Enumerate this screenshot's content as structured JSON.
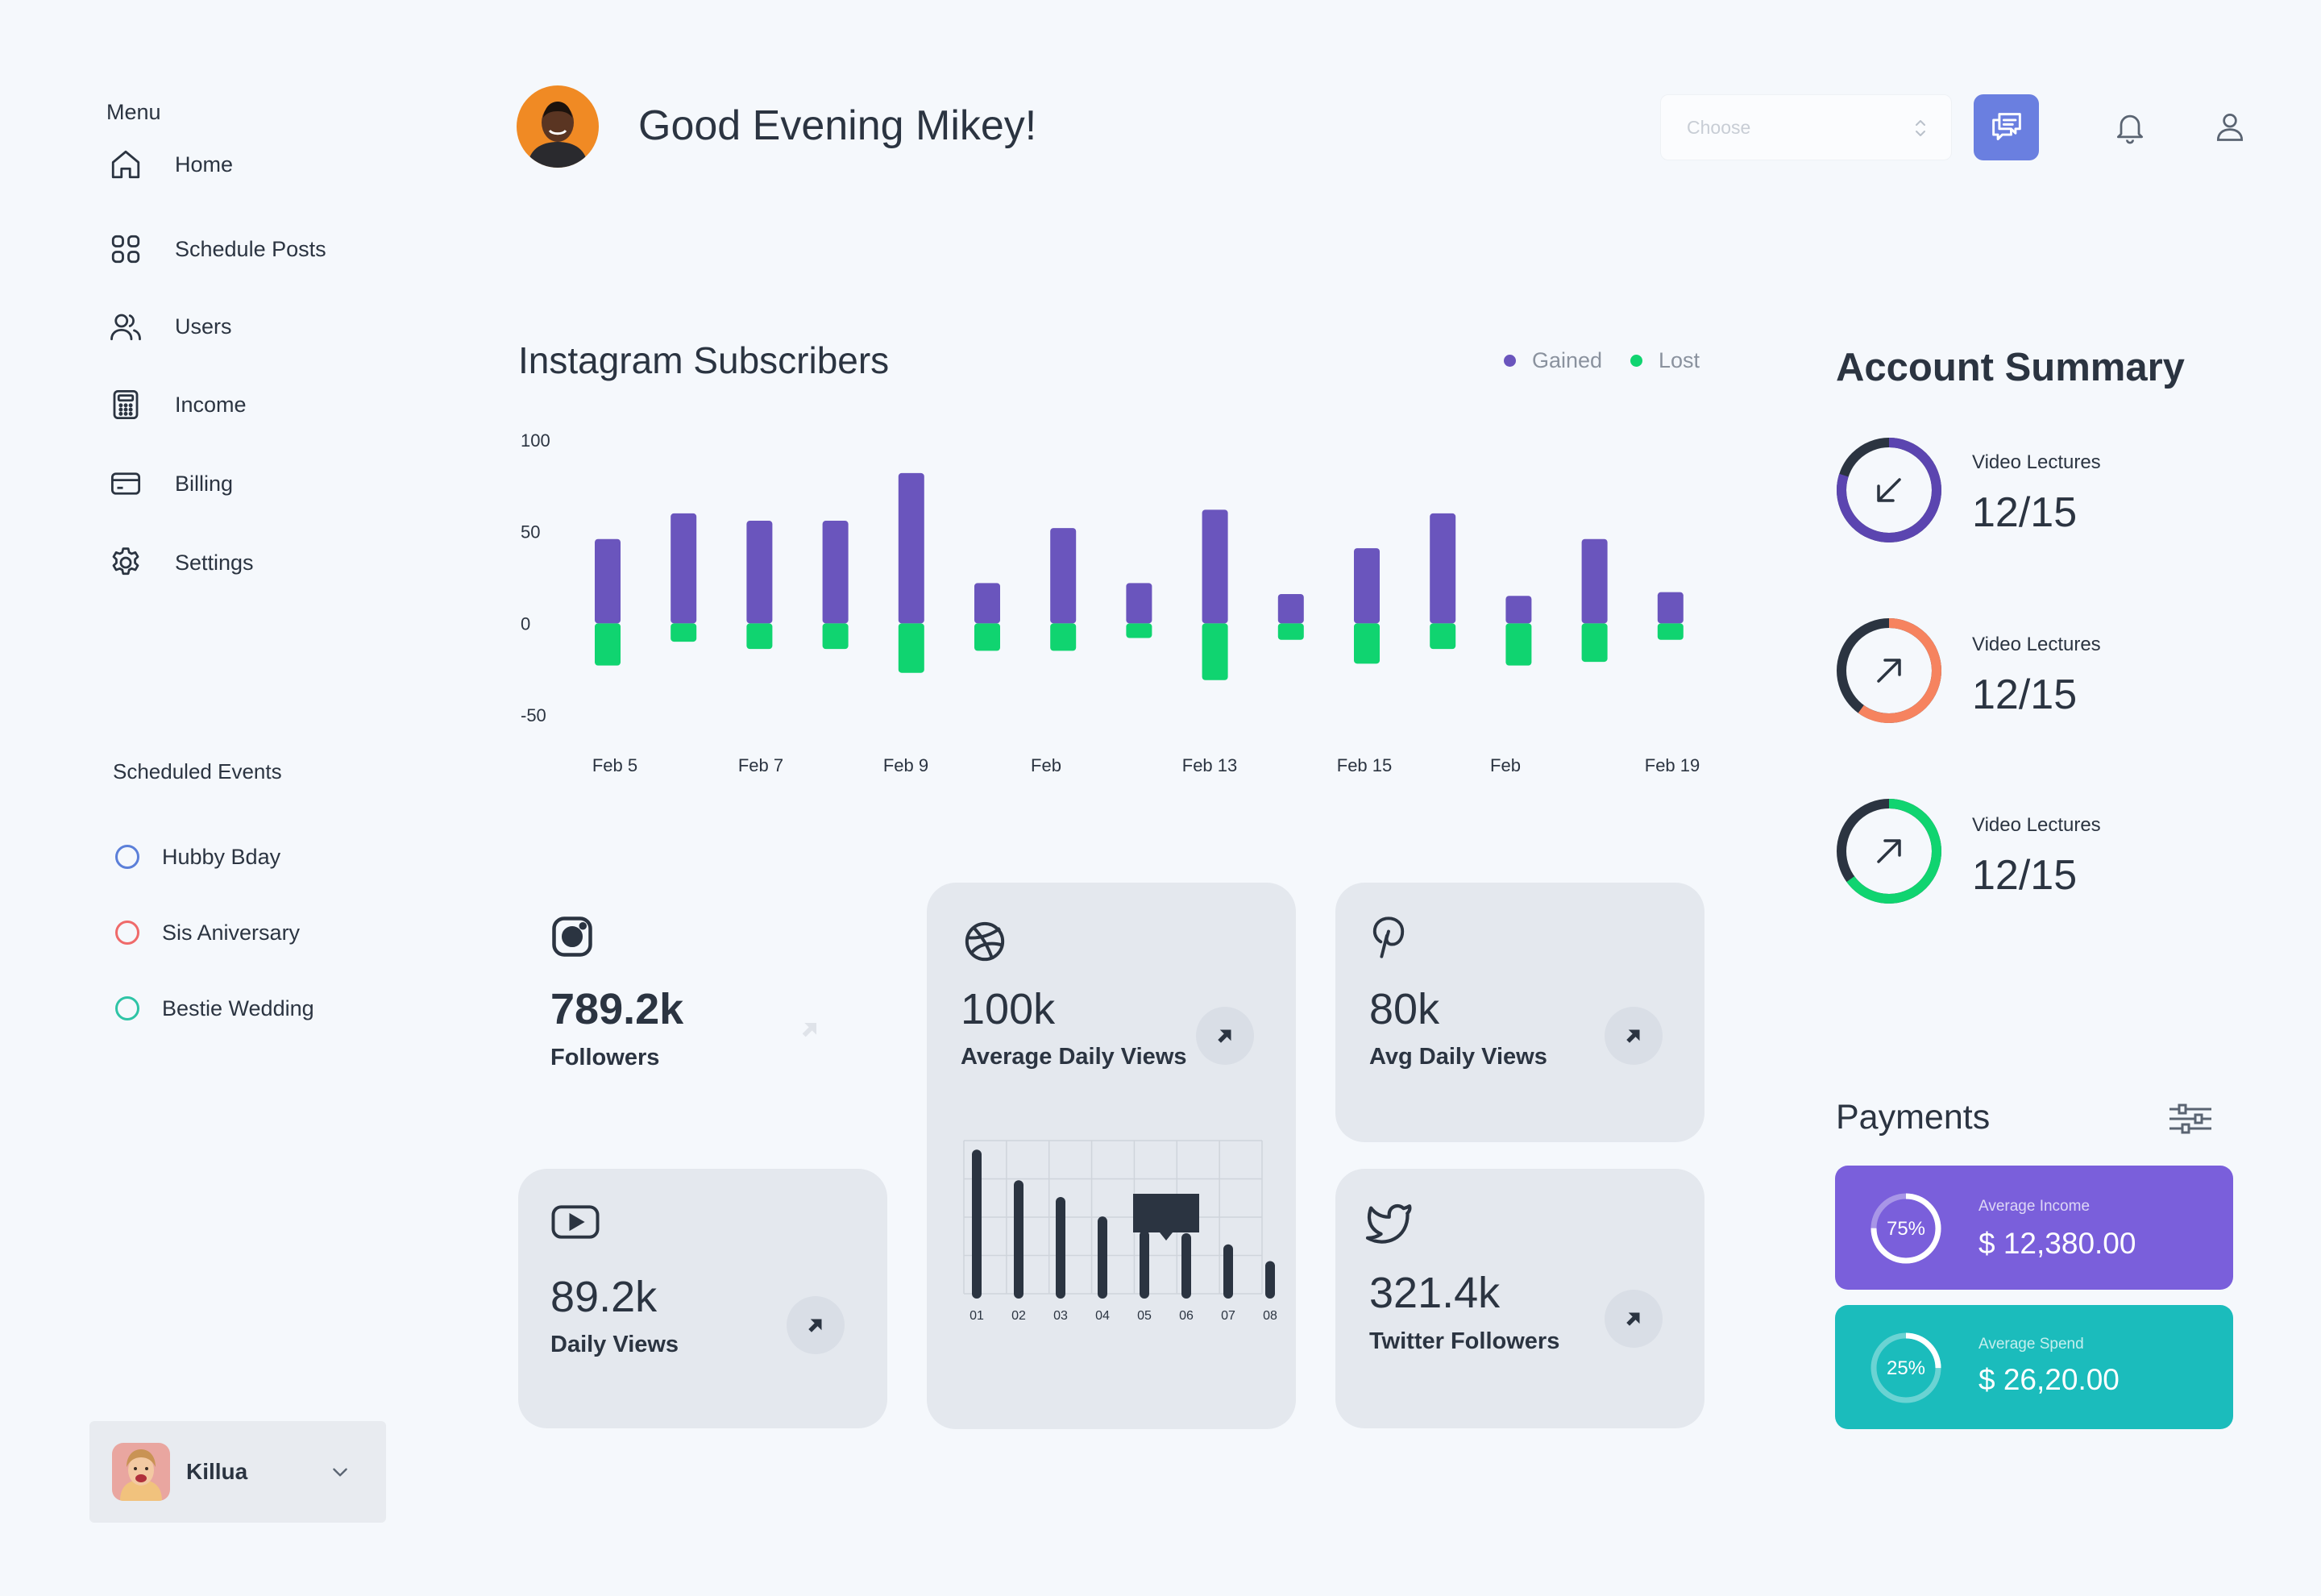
{
  "sidebar": {
    "menu_title": "Menu",
    "items": [
      {
        "label": "Home",
        "icon": "home-icon"
      },
      {
        "label": "Schedule Posts",
        "icon": "grid-icon"
      },
      {
        "label": "Users",
        "icon": "users-icon"
      },
      {
        "label": "Income",
        "icon": "calculator-icon"
      },
      {
        "label": "Billing",
        "icon": "credit-card-icon"
      },
      {
        "label": "Settings",
        "icon": "gear-icon"
      }
    ],
    "events_title": "Scheduled Events",
    "events": [
      {
        "label": "Hubby Bday",
        "color": "#5b7fd9"
      },
      {
        "label": "Sis Aniversary",
        "color": "#ef6a6a"
      },
      {
        "label": "Bestie Wedding",
        "color": "#2ec4a6"
      }
    ],
    "profile": {
      "name": "Killua"
    }
  },
  "header": {
    "greeting": "Good Evening Mikey!",
    "select_placeholder": "Choose"
  },
  "colors": {
    "gained": "#6a55bd",
    "lost": "#10d470",
    "accent": "#6a7fe0",
    "income_card": "#7a5fdb",
    "spend_card": "#1bbcbc"
  },
  "chart_data": {
    "type": "bar",
    "title": "Instagram Subscribers",
    "legend": [
      "Gained",
      "Lost"
    ],
    "legend_position": "top-right",
    "ylim": [
      -50,
      100
    ],
    "yticks": [
      "100",
      "50",
      "0",
      "-50"
    ],
    "xtick_labels": [
      "Feb 5",
      "Feb 7",
      "Feb 9",
      "Feb",
      "Feb 13",
      "Feb 15",
      "Feb",
      "Feb 19"
    ],
    "series": [
      {
        "name": "Gained",
        "values": [
          46,
          60,
          56,
          56,
          82,
          22,
          52,
          22,
          62,
          16,
          41,
          60,
          15,
          46,
          17
        ]
      },
      {
        "name": "Lost",
        "values": [
          -23,
          -10,
          -14,
          -14,
          -27,
          -15,
          -15,
          -8,
          -31,
          -9,
          -22,
          -14,
          -23,
          -21,
          -9
        ]
      }
    ]
  },
  "cards": {
    "instagram": {
      "value": "789.2k",
      "label": "Followers"
    },
    "dribbble": {
      "value": "100k",
      "label": "Average Daily Views"
    },
    "pinterest": {
      "value": "80k",
      "label": "Avg Daily Views"
    },
    "youtube": {
      "value": "89.2k",
      "label": "Daily Views"
    },
    "twitter": {
      "value": "321.4k",
      "label": "Twitter Followers"
    }
  },
  "mini_chart": {
    "type": "bar",
    "categories": [
      "01",
      "02",
      "03",
      "04",
      "05",
      "06",
      "07",
      "08"
    ],
    "values": [
      100,
      78,
      66,
      52,
      42,
      40,
      32,
      20
    ],
    "ylim": [
      0,
      110
    ]
  },
  "account_summary": {
    "title": "Account Summary",
    "items": [
      {
        "label": "Video Lectures",
        "value": "12/15",
        "color": "#5b45b0",
        "progress": 0.8,
        "arrow": "down-left"
      },
      {
        "label": "Video Lectures",
        "value": "12/15",
        "color": "#f6835f",
        "progress": 0.6,
        "arrow": "up-right"
      },
      {
        "label": "Video Lectures",
        "value": "12/15",
        "color": "#10d470",
        "progress": 0.65,
        "arrow": "up-right"
      }
    ]
  },
  "payments": {
    "title": "Payments",
    "cards": [
      {
        "pct": "75%",
        "progress": 0.75,
        "label": "Average Income",
        "amount": "$ 12,380.00"
      },
      {
        "pct": "25%",
        "progress": 0.25,
        "label": "Average  Spend",
        "amount": "$ 26,20.00"
      }
    ]
  }
}
